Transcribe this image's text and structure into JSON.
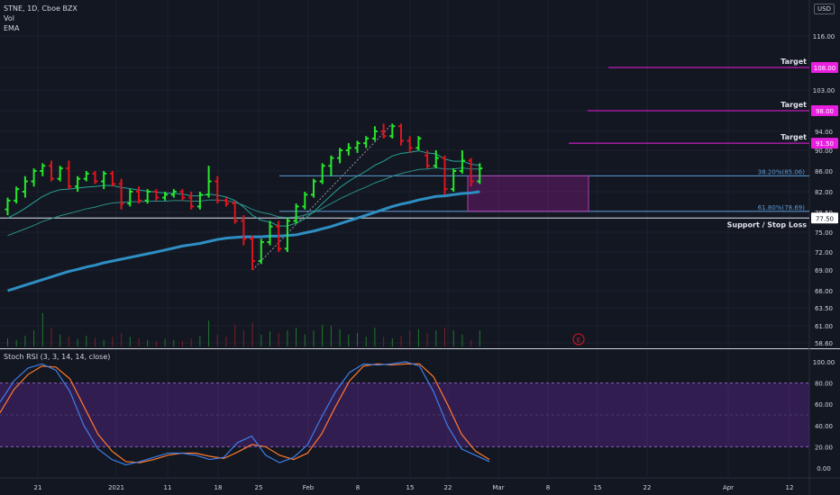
{
  "header": {
    "symbol": "STNE, 1D, Cboe BZX",
    "indicators": [
      "Vol",
      "EMA"
    ],
    "currency": "USD"
  },
  "rsi": {
    "label": "Stoch RSI (3, 3, 14, 14, close)",
    "ticks": [
      "100.00",
      "80.00",
      "60.00",
      "40.00",
      "20.00",
      "0.00"
    ],
    "band": [
      20,
      80
    ],
    "k": [
      62,
      82,
      94,
      98,
      92,
      72,
      40,
      18,
      8,
      3,
      6,
      10,
      14,
      14,
      12,
      8,
      10,
      24,
      30,
      12,
      5,
      10,
      22,
      48,
      72,
      90,
      98,
      97,
      98,
      100,
      96,
      72,
      40,
      18,
      12,
      6
    ],
    "d": [
      52,
      74,
      88,
      96,
      95,
      84,
      58,
      32,
      16,
      6,
      5,
      8,
      12,
      14,
      14,
      11,
      9,
      15,
      22,
      20,
      12,
      8,
      14,
      32,
      58,
      82,
      96,
      98,
      97,
      98,
      98,
      86,
      60,
      32,
      16,
      8
    ]
  },
  "chart_data": {
    "type": "candlestick",
    "x_ticks": [
      "21",
      "2021",
      "11",
      "18",
      "25",
      "Feb",
      "8",
      "15",
      "22",
      "Mar",
      "8",
      "15",
      "22",
      "Apr",
      "12"
    ],
    "y_ticks": [
      "116.00",
      "108.00",
      "103.00",
      "98.00",
      "94.00",
      "90.00",
      "86.00",
      "82.00",
      "78.50",
      "75.00",
      "72.00",
      "69.00",
      "66.00",
      "63.50",
      "61.00",
      "58.60"
    ],
    "candles": [
      {
        "o": 79.0,
        "h": 81.0,
        "l": 78.0,
        "c": 80.5
      },
      {
        "o": 80.5,
        "h": 83.0,
        "l": 80.0,
        "c": 82.5
      },
      {
        "o": 82.0,
        "h": 85.0,
        "l": 81.0,
        "c": 84.0
      },
      {
        "o": 84.0,
        "h": 86.5,
        "l": 83.0,
        "c": 86.0
      },
      {
        "o": 86.0,
        "h": 87.5,
        "l": 85.0,
        "c": 87.0
      },
      {
        "o": 87.0,
        "h": 88.0,
        "l": 84.0,
        "c": 84.5
      },
      {
        "o": 84.5,
        "h": 87.0,
        "l": 84.0,
        "c": 86.5
      },
      {
        "o": 86.5,
        "h": 88.0,
        "l": 82.5,
        "c": 83.0
      },
      {
        "o": 83.0,
        "h": 85.0,
        "l": 82.0,
        "c": 84.5
      },
      {
        "o": 84.5,
        "h": 86.0,
        "l": 84.0,
        "c": 85.5
      },
      {
        "o": 85.5,
        "h": 86.0,
        "l": 83.5,
        "c": 84.0
      },
      {
        "o": 84.0,
        "h": 86.0,
        "l": 82.5,
        "c": 85.5
      },
      {
        "o": 85.5,
        "h": 86.0,
        "l": 83.0,
        "c": 83.5
      },
      {
        "o": 83.5,
        "h": 84.5,
        "l": 79.0,
        "c": 80.0
      },
      {
        "o": 80.0,
        "h": 82.5,
        "l": 79.5,
        "c": 82.0
      },
      {
        "o": 82.0,
        "h": 83.0,
        "l": 80.0,
        "c": 80.5
      },
      {
        "o": 80.5,
        "h": 82.5,
        "l": 80.0,
        "c": 82.0
      },
      {
        "o": 82.0,
        "h": 82.5,
        "l": 80.5,
        "c": 81.0
      },
      {
        "o": 81.0,
        "h": 82.0,
        "l": 80.5,
        "c": 81.5
      },
      {
        "o": 81.5,
        "h": 82.5,
        "l": 81.0,
        "c": 82.0
      },
      {
        "o": 82.0,
        "h": 82.5,
        "l": 80.5,
        "c": 81.0
      },
      {
        "o": 81.0,
        "h": 82.0,
        "l": 79.0,
        "c": 79.5
      },
      {
        "o": 79.5,
        "h": 82.0,
        "l": 79.0,
        "c": 81.5
      },
      {
        "o": 81.5,
        "h": 87.0,
        "l": 81.0,
        "c": 84.0
      },
      {
        "o": 84.0,
        "h": 85.0,
        "l": 80.0,
        "c": 80.5
      },
      {
        "o": 80.5,
        "h": 81.0,
        "l": 79.5,
        "c": 80.0
      },
      {
        "o": 80.0,
        "h": 80.5,
        "l": 76.5,
        "c": 77.0
      },
      {
        "o": 77.0,
        "h": 78.0,
        "l": 73.0,
        "c": 74.0
      },
      {
        "o": 74.0,
        "h": 74.5,
        "l": 69.0,
        "c": 70.5
      },
      {
        "o": 70.5,
        "h": 74.0,
        "l": 70.0,
        "c": 73.5
      },
      {
        "o": 73.5,
        "h": 77.0,
        "l": 73.0,
        "c": 76.0
      },
      {
        "o": 76.0,
        "h": 77.0,
        "l": 72.0,
        "c": 72.5
      },
      {
        "o": 72.5,
        "h": 77.5,
        "l": 72.0,
        "c": 77.0
      },
      {
        "o": 77.0,
        "h": 80.0,
        "l": 76.5,
        "c": 79.5
      },
      {
        "o": 79.5,
        "h": 82.0,
        "l": 79.0,
        "c": 81.5
      },
      {
        "o": 81.5,
        "h": 84.5,
        "l": 81.0,
        "c": 84.0
      },
      {
        "o": 84.0,
        "h": 87.5,
        "l": 83.5,
        "c": 87.0
      },
      {
        "o": 87.0,
        "h": 89.0,
        "l": 85.0,
        "c": 88.5
      },
      {
        "o": 88.5,
        "h": 90.5,
        "l": 87.5,
        "c": 90.0
      },
      {
        "o": 90.0,
        "h": 91.5,
        "l": 89.0,
        "c": 90.5
      },
      {
        "o": 90.5,
        "h": 92.0,
        "l": 89.5,
        "c": 91.5
      },
      {
        "o": 91.5,
        "h": 93.0,
        "l": 90.5,
        "c": 92.5
      },
      {
        "o": 92.5,
        "h": 95.0,
        "l": 92.0,
        "c": 94.0
      },
      {
        "o": 94.0,
        "h": 95.5,
        "l": 92.5,
        "c": 93.0
      },
      {
        "o": 93.0,
        "h": 95.5,
        "l": 92.5,
        "c": 95.0
      },
      {
        "o": 95.0,
        "h": 95.5,
        "l": 91.0,
        "c": 92.0
      },
      {
        "o": 92.0,
        "h": 93.0,
        "l": 89.5,
        "c": 90.5
      },
      {
        "o": 90.5,
        "h": 93.0,
        "l": 90.0,
        "c": 92.5
      },
      {
        "o": 89.0,
        "h": 90.0,
        "l": 86.5,
        "c": 87.0
      },
      {
        "o": 87.0,
        "h": 90.0,
        "l": 86.5,
        "c": 88.5
      },
      {
        "o": 88.5,
        "h": 89.0,
        "l": 81.5,
        "c": 82.5
      },
      {
        "o": 82.5,
        "h": 86.5,
        "l": 82.0,
        "c": 86.0
      },
      {
        "o": 86.0,
        "h": 90.0,
        "l": 85.5,
        "c": 88.0
      },
      {
        "o": 88.0,
        "h": 88.5,
        "l": 83.0,
        "c": 84.0
      },
      {
        "o": 84.0,
        "h": 87.5,
        "l": 83.5,
        "c": 86.5
      }
    ],
    "ema_fast": [
      77.5,
      78.3,
      79.2,
      80.2,
      81.2,
      81.9,
      82.4,
      82.5,
      82.7,
      82.9,
      83.0,
      83.2,
      83.2,
      82.8,
      82.6,
      82.3,
      82.1,
      81.9,
      81.8,
      81.7,
      81.6,
      81.3,
      81.3,
      81.6,
      81.4,
      81.1,
      80.5,
      79.4,
      78.0,
      77.1,
      76.8,
      76.1,
      76.1,
      76.6,
      77.4,
      78.6,
      80.0,
      81.4,
      82.8,
      84.0,
      85.0,
      86.0,
      87.1,
      87.9,
      88.9,
      89.4,
      89.6,
      89.9,
      89.5,
      89.3,
      88.3,
      87.9,
      87.9,
      87.3,
      87.1
    ],
    "ema_mid": [
      74.5,
      75.0,
      75.6,
      76.2,
      76.9,
      77.4,
      77.9,
      78.3,
      78.7,
      79.1,
      79.4,
      79.8,
      80.1,
      80.2,
      80.3,
      80.3,
      80.4,
      80.4,
      80.4,
      80.5,
      80.5,
      80.4,
      80.4,
      80.6,
      80.6,
      80.5,
      80.2,
      79.7,
      79.0,
      78.5,
      78.2,
      77.7,
      77.6,
      77.7,
      78.0,
      78.5,
      79.2,
      80.0,
      80.8,
      81.5,
      82.2,
      82.9,
      83.7,
      84.3,
      85.0,
      85.5,
      85.9,
      86.3,
      86.4,
      86.6,
      86.4,
      86.4,
      86.6,
      86.4,
      86.4
    ],
    "ema_slow": [
      66.0,
      66.4,
      66.8,
      67.2,
      67.6,
      68.0,
      68.4,
      68.8,
      69.1,
      69.5,
      69.8,
      70.2,
      70.5,
      70.8,
      71.1,
      71.4,
      71.7,
      72.0,
      72.3,
      72.6,
      72.9,
      73.1,
      73.3,
      73.6,
      73.9,
      74.1,
      74.2,
      74.3,
      74.3,
      74.3,
      74.4,
      74.4,
      74.5,
      74.6,
      74.9,
      75.2,
      75.6,
      76.0,
      76.5,
      77.0,
      77.5,
      78.0,
      78.5,
      79.0,
      79.5,
      79.9,
      80.2,
      80.6,
      80.9,
      81.2,
      81.3,
      81.5,
      81.7,
      81.8,
      82.0
    ],
    "volume": [
      0.15,
      0.12,
      0.2,
      0.3,
      0.62,
      0.35,
      0.22,
      0.18,
      0.14,
      0.2,
      0.16,
      0.12,
      0.18,
      0.25,
      0.18,
      0.15,
      0.12,
      0.1,
      0.14,
      0.12,
      0.1,
      0.15,
      0.2,
      0.48,
      0.22,
      0.18,
      0.4,
      0.3,
      0.45,
      0.22,
      0.28,
      0.25,
      0.3,
      0.35,
      0.22,
      0.3,
      0.4,
      0.38,
      0.32,
      0.22,
      0.25,
      0.18,
      0.35,
      0.18,
      0.15,
      0.2,
      0.3,
      0.32,
      0.25,
      0.3,
      0.35,
      0.3,
      0.22,
      0.12,
      0.3
    ],
    "fib_levels": [
      {
        "label": "38.20%(85.06)",
        "value": 85.06
      },
      {
        "label": "61.80%(78.69)",
        "value": 78.69
      }
    ],
    "targets": [
      {
        "label": "Target",
        "value": 108.0,
        "price_label": "108.00"
      },
      {
        "label": "Target",
        "value": 98.0,
        "price_label": "98.00"
      },
      {
        "label": "Target",
        "value": 91.5,
        "price_label": "91.50"
      }
    ],
    "support": {
      "label": "Support / Stop Loss",
      "value": 77.5,
      "price_label": "77.50"
    },
    "event_marker": "E",
    "colors": {
      "up": "#26e82a",
      "down": "#e0141e",
      "target": "#e91ee0",
      "ema_fast": "#26a69a",
      "ema_slow": "#2e8fc4",
      "fib": "#5b9bd5",
      "rsi_k": "#3d7ee8",
      "rsi_d": "#ff7a2a",
      "band": "#3b1f5c"
    }
  }
}
